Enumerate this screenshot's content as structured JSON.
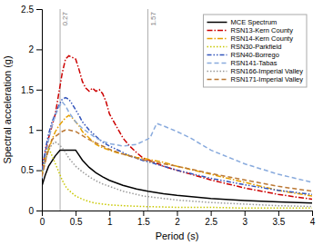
{
  "chart_data": {
    "type": "line",
    "xlabel": "Period (s)",
    "ylabel": "Spectral acceleration (g)",
    "xlim": [
      0,
      4
    ],
    "ylim": [
      0,
      2.5
    ],
    "xticks": [
      0,
      0.5,
      1,
      1.5,
      2,
      2.5,
      3,
      3.5,
      4
    ],
    "yticks": [
      0,
      0.5,
      1,
      1.5,
      2,
      2.5
    ],
    "grid": false,
    "legend": "upper right",
    "annotations": [
      {
        "x": 0.27,
        "text": "0.27"
      },
      {
        "x": 1.57,
        "text": "1.57"
      }
    ],
    "series": [
      {
        "name": "MCE Spectrum",
        "color": "#000000",
        "line_style": "solid",
        "x": [
          0.0,
          0.05,
          0.1,
          0.2,
          0.27,
          0.3,
          0.4,
          0.5,
          0.6,
          0.7,
          0.8,
          0.9,
          1.0,
          1.2,
          1.4,
          1.57,
          1.8,
          2.0,
          2.5,
          3.0,
          3.5,
          4.0
        ],
        "values": [
          0.3,
          0.44,
          0.55,
          0.68,
          0.75,
          0.75,
          0.75,
          0.75,
          0.625,
          0.536,
          0.469,
          0.417,
          0.375,
          0.313,
          0.268,
          0.239,
          0.208,
          0.188,
          0.15,
          0.125,
          0.107,
          0.094
        ]
      },
      {
        "name": "RSN13-Kern County",
        "color": "#cc0000",
        "line_style": "dashdot",
        "x": [
          0.0,
          0.05,
          0.1,
          0.15,
          0.2,
          0.25,
          0.3,
          0.35,
          0.4,
          0.45,
          0.5,
          0.55,
          0.6,
          0.65,
          0.7,
          0.75,
          0.8,
          0.85,
          0.9,
          0.95,
          1.0,
          1.1,
          1.2,
          1.3,
          1.4,
          1.5,
          1.6,
          1.8,
          2.0,
          2.5,
          3.0,
          3.5,
          4.0
        ],
        "values": [
          0.5,
          0.72,
          0.9,
          1.05,
          1.2,
          1.45,
          1.7,
          1.88,
          1.92,
          1.9,
          1.88,
          1.75,
          1.6,
          1.52,
          1.48,
          1.52,
          1.48,
          1.5,
          1.45,
          1.35,
          1.2,
          1.05,
          0.9,
          0.8,
          0.72,
          0.65,
          0.62,
          0.55,
          0.5,
          0.38,
          0.28,
          0.2,
          0.14
        ]
      },
      {
        "name": "RSN14-Kern County",
        "color": "#e6a000",
        "line_style": "dashdot",
        "x": [
          0.0,
          0.05,
          0.1,
          0.15,
          0.2,
          0.25,
          0.3,
          0.35,
          0.4,
          0.45,
          0.5,
          0.55,
          0.6,
          0.7,
          0.8,
          0.9,
          1.0,
          1.1,
          1.2,
          1.3,
          1.4,
          1.5,
          1.6,
          1.8,
          2.0,
          2.5,
          3.0,
          3.5,
          4.0
        ],
        "values": [
          0.45,
          0.62,
          0.75,
          0.88,
          0.98,
          1.05,
          1.1,
          1.15,
          1.18,
          1.15,
          1.1,
          1.05,
          0.98,
          0.9,
          0.82,
          0.78,
          0.75,
          0.72,
          0.7,
          0.68,
          0.66,
          0.65,
          0.63,
          0.6,
          0.55,
          0.45,
          0.35,
          0.25,
          0.18
        ]
      },
      {
        "name": "RSN30-Parkfield",
        "color": "#c8c800",
        "line_style": "dotted",
        "x": [
          0.0,
          0.05,
          0.1,
          0.15,
          0.2,
          0.25,
          0.3,
          0.35,
          0.4,
          0.5,
          0.6,
          0.7,
          0.8,
          1.0,
          1.2,
          1.5,
          2.0,
          2.5,
          3.0,
          3.5,
          4.0
        ],
        "values": [
          0.45,
          0.68,
          0.78,
          0.68,
          0.58,
          0.48,
          0.38,
          0.3,
          0.25,
          0.18,
          0.14,
          0.11,
          0.09,
          0.07,
          0.06,
          0.05,
          0.04,
          0.04,
          0.03,
          0.03,
          0.03
        ]
      },
      {
        "name": "RSN40-Borrego",
        "color": "#3355bb",
        "line_style": "dashdotdotted",
        "x": [
          0.0,
          0.05,
          0.1,
          0.15,
          0.2,
          0.25,
          0.3,
          0.35,
          0.4,
          0.45,
          0.5,
          0.55,
          0.6,
          0.7,
          0.8,
          0.9,
          1.0,
          1.1,
          1.2,
          1.3,
          1.4,
          1.5,
          1.6,
          1.8,
          2.0,
          2.5,
          3.0,
          3.5,
          4.0
        ],
        "values": [
          0.5,
          0.75,
          0.95,
          1.1,
          1.2,
          1.3,
          1.38,
          1.4,
          1.38,
          1.32,
          1.25,
          1.18,
          1.1,
          1.0,
          0.92,
          0.85,
          0.8,
          0.76,
          0.72,
          0.68,
          0.65,
          0.62,
          0.6,
          0.55,
          0.5,
          0.4,
          0.32,
          0.25,
          0.2
        ]
      },
      {
        "name": "RSN141-Tabas",
        "color": "#88aadd",
        "line_style": "dashed",
        "x": [
          0.0,
          0.05,
          0.1,
          0.15,
          0.2,
          0.25,
          0.3,
          0.35,
          0.4,
          0.5,
          0.6,
          0.7,
          0.8,
          0.9,
          1.0,
          1.2,
          1.4,
          1.6,
          1.7,
          1.8,
          2.0,
          2.2,
          2.5,
          3.0,
          3.5,
          4.0
        ],
        "values": [
          0.4,
          0.65,
          0.88,
          1.05,
          1.18,
          1.28,
          1.35,
          1.3,
          1.22,
          1.1,
          1.02,
          0.96,
          0.9,
          0.86,
          0.83,
          0.8,
          0.82,
          0.9,
          1.08,
          1.05,
          0.98,
          0.9,
          0.75,
          0.58,
          0.45,
          0.35
        ]
      },
      {
        "name": "RSN166-Imperial Valley",
        "color": "#999999",
        "line_style": "dotted",
        "x": [
          0.0,
          0.05,
          0.1,
          0.15,
          0.2,
          0.25,
          0.3,
          0.35,
          0.4,
          0.5,
          0.6,
          0.7,
          0.8,
          0.9,
          1.0,
          1.2,
          1.5,
          2.0,
          2.5,
          3.0,
          3.5,
          4.0
        ],
        "values": [
          0.42,
          0.62,
          0.75,
          0.82,
          0.85,
          0.82,
          0.78,
          0.72,
          0.65,
          0.55,
          0.48,
          0.42,
          0.37,
          0.33,
          0.3,
          0.24,
          0.18,
          0.13,
          0.1,
          0.08,
          0.06,
          0.05
        ]
      },
      {
        "name": "RSN171-Imperial Valley",
        "color": "#bb7733",
        "line_style": "dashed",
        "x": [
          0.0,
          0.05,
          0.1,
          0.15,
          0.2,
          0.25,
          0.3,
          0.35,
          0.4,
          0.5,
          0.6,
          0.7,
          0.8,
          0.9,
          1.0,
          1.2,
          1.4,
          1.6,
          1.8,
          2.0,
          2.5,
          3.0,
          3.5,
          4.0
        ],
        "values": [
          0.42,
          0.6,
          0.78,
          0.88,
          0.92,
          0.95,
          0.98,
          1.0,
          1.0,
          0.98,
          0.93,
          0.88,
          0.84,
          0.8,
          0.76,
          0.7,
          0.65,
          0.61,
          0.58,
          0.55,
          0.46,
          0.38,
          0.3,
          0.24
        ]
      }
    ]
  }
}
